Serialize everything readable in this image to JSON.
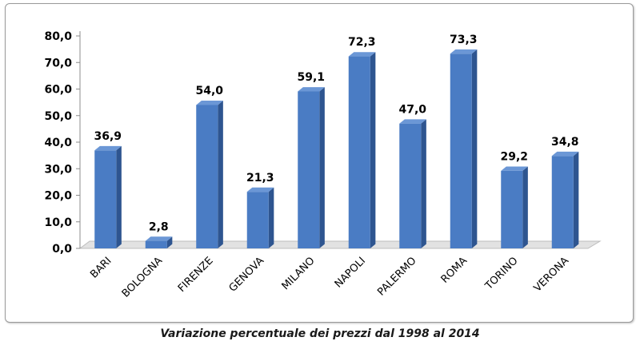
{
  "chart_data": {
    "type": "bar",
    "title": "Variazione percentuale dei prezzi dal 1998 al 2014",
    "categories": [
      "BARI",
      "BOLOGNA",
      "FIRENZE",
      "GENOVA",
      "MILANO",
      "NAPOLI",
      "PALERMO",
      "ROMA",
      "TORINO",
      "VERONA"
    ],
    "values": [
      36.9,
      2.8,
      54.0,
      21.3,
      59.1,
      72.3,
      47.0,
      73.3,
      29.2,
      34.8
    ],
    "value_labels": [
      "36,9",
      "2,8",
      "54,0",
      "21,3",
      "59,1",
      "72,3",
      "47,0",
      "73,3",
      "29,2",
      "34,8"
    ],
    "y_ticks": [
      0,
      10,
      20,
      30,
      40,
      50,
      60,
      70,
      80
    ],
    "y_tick_labels": [
      "0,0",
      "10,0",
      "20,0",
      "30,0",
      "40,0",
      "50,0",
      "60,0",
      "70,0",
      "80,0"
    ],
    "ylim": [
      0,
      80
    ],
    "xlabel": "",
    "ylabel": "",
    "grid": false,
    "legend": "none",
    "bar_color": "#4a7cc4",
    "bar_side_color": "#2e5590",
    "bar_top_color": "#6b97d6"
  }
}
